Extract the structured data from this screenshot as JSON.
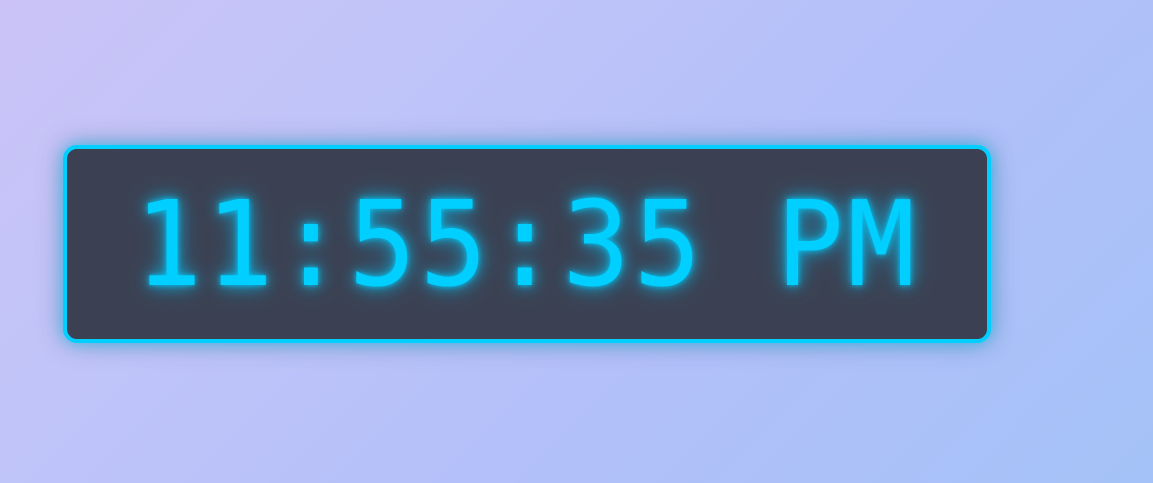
{
  "clock": {
    "time": "11:55:35 PM"
  },
  "colors": {
    "accent": "#00cfff",
    "panel": "#3b4152",
    "background_start": "#cbc3f7",
    "background_end": "#a4c2f7"
  }
}
